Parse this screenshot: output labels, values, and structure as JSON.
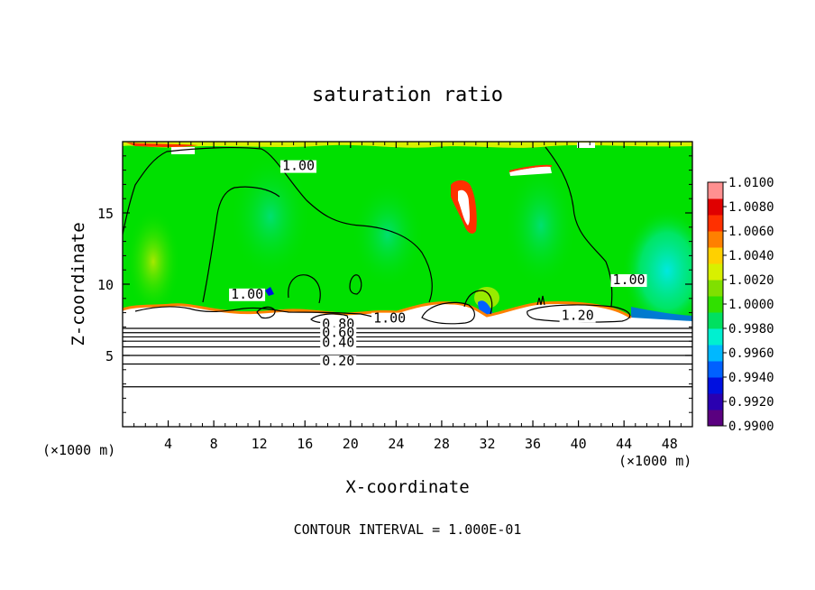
{
  "chart_data": {
    "type": "heatmap",
    "title": "saturation ratio",
    "xlabel": "X-coordinate",
    "ylabel": "Z-coordinate",
    "x_unit_left": "(×1000 m)",
    "x_unit_right": "(×1000 m)",
    "footer": "CONTOUR INTERVAL = 1.000E-01",
    "xlim": [
      0,
      50
    ],
    "ylim": [
      0,
      20
    ],
    "x_ticks": [
      4,
      8,
      12,
      16,
      20,
      24,
      28,
      32,
      36,
      40,
      44,
      48
    ],
    "x_tick_labels": [
      "4",
      "8",
      "12",
      "16",
      "20",
      "24",
      "28",
      "32",
      "36",
      "40",
      "44",
      "48"
    ],
    "y_ticks": [
      5,
      10,
      15
    ],
    "y_tick_labels": [
      "5",
      "10",
      "15"
    ],
    "colorbar": {
      "min": 0.99,
      "max": 1.01,
      "tick_labels": [
        "1.0100",
        "1.0080",
        "1.0060",
        "1.0040",
        "1.0020",
        "1.0000",
        "0.9980",
        "0.9960",
        "0.9940",
        "0.9920",
        "0.9900"
      ],
      "colors": [
        "#5a0080",
        "#2a00b0",
        "#0010e0",
        "#0060ff",
        "#00b8ff",
        "#00f0d0",
        "#00e060",
        "#30e000",
        "#80e000",
        "#d8f000",
        "#ffd000",
        "#ff8000",
        "#ff3000",
        "#e00000",
        "#ff9090"
      ]
    },
    "fill_region_z_min": 7.2,
    "fill_region_z_max": 20,
    "background_value": 1.0,
    "contour_labels": [
      {
        "text": "1.00",
        "x": 14,
        "y": 18.0
      },
      {
        "text": "1.00",
        "x": 9.5,
        "y": 9.0
      },
      {
        "text": "1.00",
        "x": 43,
        "y": 10.0
      },
      {
        "text": "1.00",
        "x": 22,
        "y": 7.3
      },
      {
        "text": "1.20",
        "x": 38.5,
        "y": 7.5
      },
      {
        "text": "0.80",
        "x": 17.5,
        "y": 6.9
      },
      {
        "text": "0.60",
        "x": 17.5,
        "y": 6.3
      },
      {
        "text": "0.40",
        "x": 17.5,
        "y": 5.6
      },
      {
        "text": "0.20",
        "x": 17.5,
        "y": 4.3
      }
    ],
    "horizontal_contours_z": [
      2.8,
      4.4,
      5.0,
      5.6,
      6.0,
      6.3,
      6.6,
      6.9
    ]
  }
}
